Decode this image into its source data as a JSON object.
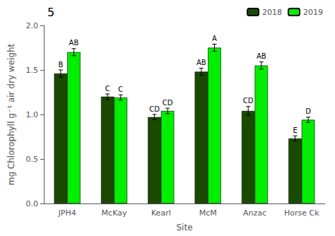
{
  "chart_data": {
    "type": "bar",
    "xlabel": "Site",
    "ylabel": "mg Chlorophyll g⁻¹ air dry weight",
    "categories": [
      "JPH4",
      "McKay",
      "Kearl",
      "McM",
      "Anzac",
      "Horse Ck"
    ],
    "series": [
      {
        "name": "2018",
        "color": "#1a4a00",
        "values": [
          1.46,
          1.2,
          0.97,
          1.48,
          1.04,
          0.73
        ],
        "errors": [
          0.04,
          0.03,
          0.03,
          0.04,
          0.05,
          0.03
        ],
        "labels": [
          "B",
          "C",
          "CD",
          "AB",
          "CD",
          "E"
        ]
      },
      {
        "name": "2019",
        "color": "#00ee00",
        "values": [
          1.7,
          1.19,
          1.04,
          1.75,
          1.55,
          0.94
        ],
        "errors": [
          0.04,
          0.03,
          0.03,
          0.04,
          0.04,
          0.03
        ],
        "labels": [
          "AB",
          "C",
          "CD",
          "A",
          "AB",
          "D"
        ]
      }
    ],
    "ylim": [
      0.0,
      2.0
    ],
    "yticks": [
      {
        "value": 0,
        "label": "0.0"
      },
      0.5,
      {
        "value": 1,
        "label": "1.0"
      },
      1.5,
      {
        "value": 2,
        "label": "2.0"
      }
    ],
    "grid": false,
    "legend": "upper right",
    "annotations": [
      {
        "text": "5"
      }
    ]
  }
}
